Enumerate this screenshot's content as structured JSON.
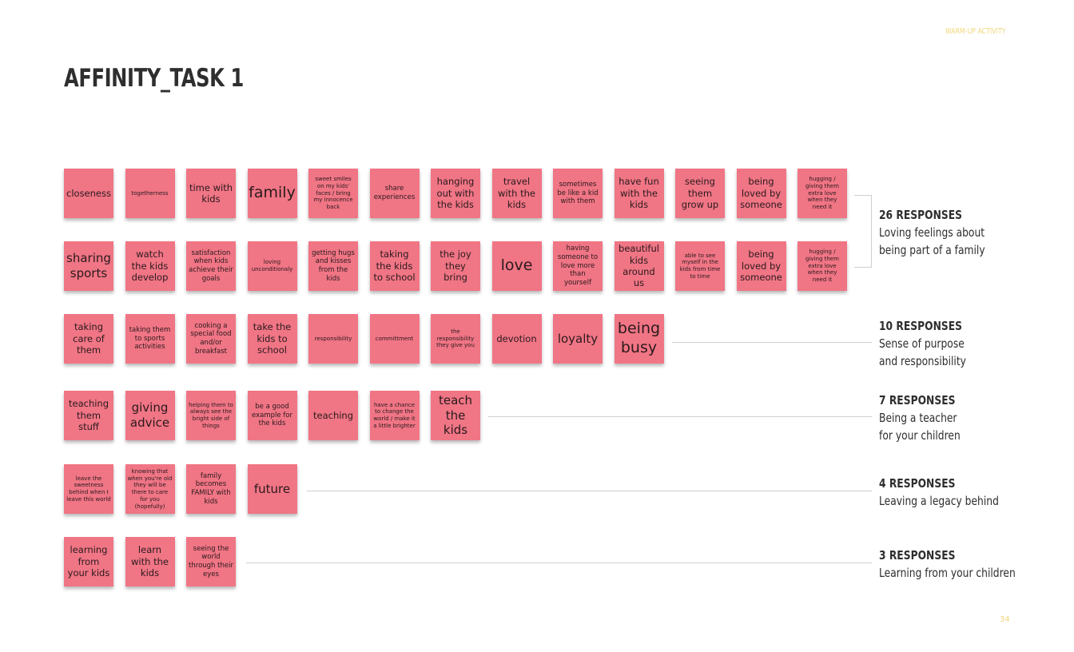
{
  "header": {
    "section_label": "WARM-UP ACTIVITY",
    "title": "AFFINITY_TASK 1"
  },
  "page_number": "34",
  "colors": {
    "note": "#f07585",
    "accent": "#f1d77e",
    "text": "#2e2e2e"
  },
  "groups": [
    {
      "count": "26 RESPONSES",
      "description": "Loving feelings about\nbeing part of a family",
      "notes": [
        "closeness",
        "togetherness",
        "time with kids",
        "family",
        "sweet smiles on my kids' faces / bring my innocence back",
        "share experiences",
        "hanging out with the kids",
        "travel with the kids",
        "sometimes be like a kid with them",
        "have fun with the kids",
        "seeing them grow up",
        "being loved by someone",
        "hugging / giving them extra love when they need it",
        "sharing sports",
        "watch the kids develop",
        "satisfaction when kids achieve their goals",
        "loving unconditionaly",
        "getting hugs and kisses from the kids",
        "taking the kids to school",
        "the joy they bring",
        "love",
        "having someone to love more than yourself",
        "beautiful kids around us",
        "able to see myself in the kids from time to time",
        "being loved by someone",
        "hugging / giving them extra love when they need it"
      ]
    },
    {
      "count": "10 RESPONSES",
      "description": "Sense of purpose\nand responsibility",
      "notes": [
        "taking care of them",
        "taking them to sports activities",
        "cooking a special food and/or breakfast",
        "take the kids to school",
        "responsibility",
        "committment",
        "the responsibility they give you",
        "devotion",
        "loyalty",
        "being busy"
      ]
    },
    {
      "count": "7 RESPONSES",
      "description": "Being a teacher\nfor your children",
      "notes": [
        "teaching them stuff",
        "giving advice",
        "helping them to always see the bright side of things",
        "be a good example for the kids",
        "teaching",
        "have a chance to change the world / make it a little brighter",
        "teach the kids"
      ]
    },
    {
      "count": "4 RESPONSES",
      "description": "Leaving a legacy behind",
      "notes": [
        "leave the sweetness behind when I leave this world",
        "knowing that when you're old they will be there to care for you (hopefully)",
        "family becomes FAMILY with kids",
        "future"
      ]
    },
    {
      "count": "3 RESPONSES",
      "description": "Learning from your children",
      "notes": [
        "learning from your kids",
        "learn with the kids",
        "seeing the world through their eyes"
      ]
    }
  ]
}
